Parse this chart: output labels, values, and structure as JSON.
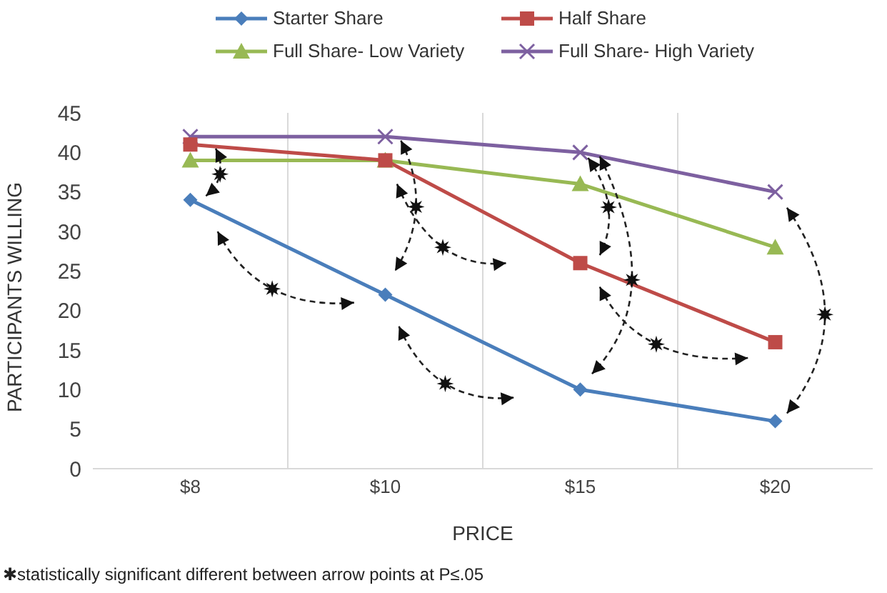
{
  "chart_data": {
    "type": "line",
    "xlabel": "PRICE",
    "ylabel": "PARTICIPANTS WILLING",
    "categories": [
      "$8",
      "$10",
      "$15",
      "$20"
    ],
    "series": [
      {
        "name": "Starter Share",
        "color": "#4a7ebb",
        "marker": "diamond",
        "values": [
          34,
          22,
          10,
          6
        ]
      },
      {
        "name": "Half Share",
        "color": "#be4b48",
        "marker": "square",
        "values": [
          41,
          39,
          26,
          16
        ]
      },
      {
        "name": "Full Share- Low Variety",
        "color": "#98b954",
        "marker": "triangle",
        "values": [
          39,
          39,
          36,
          28
        ]
      },
      {
        "name": "Full Share- High Variety",
        "color": "#7d60a0",
        "marker": "cross",
        "values": [
          42,
          42,
          40,
          35
        ]
      }
    ],
    "ylim": [
      0,
      45
    ],
    "yticks": [
      0,
      5,
      10,
      15,
      20,
      25,
      30,
      35,
      40,
      45
    ],
    "grid": "x",
    "legend": "top",
    "line_style": "solid",
    "annotations": [
      "✱statistically significant different between arrow points at P≤.05"
    ]
  }
}
